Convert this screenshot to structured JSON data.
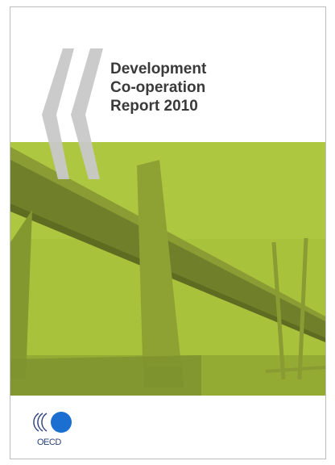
{
  "cover": {
    "title_lines": [
      "Development",
      "Co-operation",
      "Report 2010"
    ],
    "publisher": "OECD"
  }
}
